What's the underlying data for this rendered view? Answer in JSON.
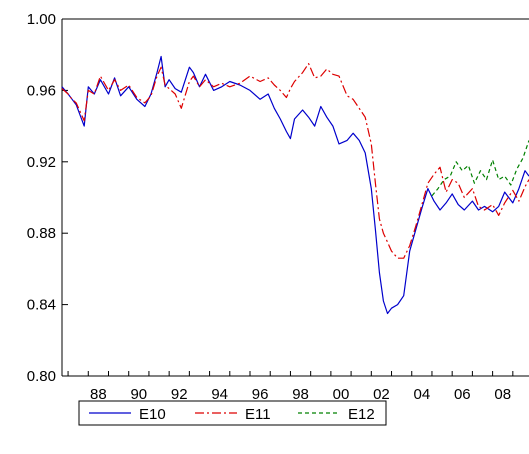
{
  "chart_data": {
    "type": "line",
    "title": "",
    "xlabel": "",
    "ylabel": "",
    "xlim": [
      1986.7,
      2009.8
    ],
    "ylim": [
      0.8,
      1.0
    ],
    "yticks": [
      0.8,
      0.84,
      0.88,
      0.92,
      0.96,
      1.0
    ],
    "ytick_labels": [
      "0.80",
      "0.84",
      "0.88",
      "0.92",
      "0.96",
      "1.00"
    ],
    "xticks": [
      1988,
      1990,
      1992,
      1994,
      1996,
      1998,
      2000,
      2002,
      2004,
      2006,
      2008
    ],
    "xtick_labels": [
      "88",
      "90",
      "92",
      "94",
      "96",
      "98",
      "00",
      "02",
      "04",
      "06",
      "08"
    ],
    "grid": false,
    "legend_position": "bottom-left",
    "series": [
      {
        "name": "E10",
        "color": "#0000cc",
        "dash": "solid",
        "x": [
          1986.7,
          1987.0,
          1987.2,
          1987.4,
          1987.6,
          1987.8,
          1988.0,
          1988.3,
          1988.6,
          1989.0,
          1989.3,
          1989.6,
          1990.0,
          1990.4,
          1990.8,
          1991.1,
          1991.4,
          1991.6,
          1991.8,
          1992.0,
          1992.3,
          1992.6,
          1993.0,
          1993.2,
          1993.5,
          1993.8,
          1994.2,
          1994.6,
          1995.0,
          1995.5,
          1996.0,
          1996.5,
          1996.9,
          1997.2,
          1997.5,
          1997.8,
          1998.0,
          1998.2,
          1998.6,
          1998.9,
          1999.2,
          1999.5,
          1999.8,
          2000.1,
          2000.4,
          2000.8,
          2001.1,
          2001.4,
          2001.7,
          2002.0,
          2002.2,
          2002.4,
          2002.6,
          2002.8,
          2003.0,
          2003.3,
          2003.6,
          2003.9,
          2004.2,
          2004.5,
          2004.8,
          2005.1,
          2005.4,
          2005.7,
          2006.0,
          2006.3,
          2006.6,
          2007.0,
          2007.3,
          2007.6,
          2008.0,
          2008.3,
          2008.6,
          2009.0,
          2009.3,
          2009.6,
          2009.8
        ],
        "y": [
          0.962,
          0.958,
          0.955,
          0.952,
          0.946,
          0.94,
          0.962,
          0.958,
          0.966,
          0.958,
          0.967,
          0.957,
          0.962,
          0.955,
          0.951,
          0.958,
          0.97,
          0.979,
          0.962,
          0.966,
          0.961,
          0.959,
          0.973,
          0.97,
          0.962,
          0.969,
          0.96,
          0.962,
          0.965,
          0.963,
          0.96,
          0.955,
          0.958,
          0.95,
          0.944,
          0.937,
          0.933,
          0.944,
          0.949,
          0.945,
          0.94,
          0.951,
          0.945,
          0.94,
          0.93,
          0.932,
          0.936,
          0.932,
          0.925,
          0.905,
          0.882,
          0.858,
          0.842,
          0.835,
          0.838,
          0.84,
          0.845,
          0.87,
          0.882,
          0.894,
          0.905,
          0.898,
          0.893,
          0.897,
          0.902,
          0.896,
          0.893,
          0.898,
          0.893,
          0.895,
          0.892,
          0.895,
          0.903,
          0.897,
          0.905,
          0.915,
          0.912
        ]
      },
      {
        "name": "E11",
        "color": "#dd0000",
        "dash": "dashdot",
        "x": [
          1986.7,
          1987.0,
          1987.2,
          1987.4,
          1987.6,
          1987.8,
          1988.0,
          1988.3,
          1988.6,
          1989.0,
          1989.3,
          1989.6,
          1990.0,
          1990.4,
          1990.8,
          1991.1,
          1991.4,
          1991.6,
          1991.8,
          1992.0,
          1992.3,
          1992.6,
          1993.0,
          1993.2,
          1993.5,
          1993.8,
          1994.2,
          1994.6,
          1995.0,
          1995.5,
          1996.0,
          1996.5,
          1996.9,
          1997.2,
          1997.5,
          1997.8,
          1998.0,
          1998.2,
          1998.6,
          1998.9,
          1999.2,
          1999.5,
          1999.8,
          2000.1,
          2000.4,
          2000.8,
          2001.1,
          2001.4,
          2001.7,
          2002.0,
          2002.2,
          2002.4,
          2002.6,
          2002.8,
          2003.0,
          2003.3,
          2003.6,
          2003.9,
          2004.2,
          2004.5,
          2004.8,
          2005.1,
          2005.4,
          2005.7,
          2006.0,
          2006.3,
          2006.6,
          2007.0,
          2007.3,
          2007.6,
          2008.0,
          2008.3,
          2008.6,
          2009.0,
          2009.3,
          2009.6,
          2009.8
        ],
        "y": [
          0.961,
          0.958,
          0.955,
          0.953,
          0.948,
          0.943,
          0.96,
          0.958,
          0.968,
          0.96,
          0.966,
          0.96,
          0.963,
          0.956,
          0.953,
          0.957,
          0.968,
          0.973,
          0.963,
          0.961,
          0.958,
          0.95,
          0.965,
          0.968,
          0.962,
          0.966,
          0.962,
          0.964,
          0.962,
          0.964,
          0.968,
          0.965,
          0.967,
          0.963,
          0.96,
          0.956,
          0.961,
          0.965,
          0.97,
          0.975,
          0.967,
          0.968,
          0.972,
          0.969,
          0.968,
          0.957,
          0.955,
          0.95,
          0.945,
          0.93,
          0.908,
          0.888,
          0.88,
          0.875,
          0.87,
          0.866,
          0.866,
          0.873,
          0.884,
          0.896,
          0.908,
          0.913,
          0.917,
          0.903,
          0.91,
          0.908,
          0.9,
          0.905,
          0.895,
          0.893,
          0.896,
          0.89,
          0.897,
          0.904,
          0.898,
          0.906,
          0.91
        ]
      },
      {
        "name": "E12",
        "color": "#008000",
        "dash": "dashed",
        "x": [
          2005.0,
          2005.3,
          2005.6,
          2005.9,
          2006.2,
          2006.5,
          2006.8,
          2007.1,
          2007.4,
          2007.7,
          2008.0,
          2008.3,
          2008.6,
          2008.9,
          2009.2,
          2009.5,
          2009.8
        ],
        "y": [
          0.901,
          0.905,
          0.91,
          0.912,
          0.92,
          0.915,
          0.918,
          0.908,
          0.915,
          0.91,
          0.921,
          0.91,
          0.912,
          0.907,
          0.916,
          0.922,
          0.932
        ]
      }
    ]
  }
}
